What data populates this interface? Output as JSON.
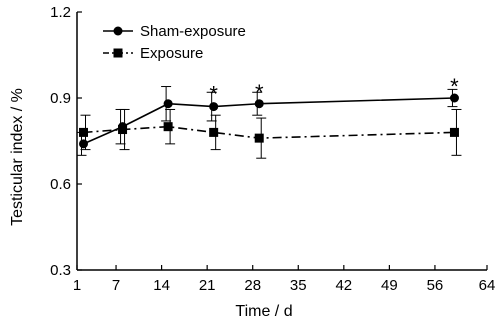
{
  "chart_data": {
    "type": "line",
    "title": "",
    "xlabel": "Time / d",
    "ylabel": "Testicular index / %",
    "xlim": [
      1,
      64
    ],
    "ylim": [
      0.3,
      1.2
    ],
    "xticks": [
      1,
      7,
      14,
      21,
      28,
      35,
      42,
      49,
      56,
      64
    ],
    "yticks": [
      0.3,
      0.6,
      0.9,
      1.2
    ],
    "xtick_labels": [
      "1",
      "7",
      "14",
      "21",
      "28",
      "35",
      "42",
      "49",
      "56",
      "64"
    ],
    "ytick_labels": [
      "0.3",
      "0.6",
      "0.9",
      "1.2"
    ],
    "grid": false,
    "legend_position": "top-left",
    "series": [
      {
        "name": "Sham-exposure",
        "marker": "circle",
        "line_style": "solid",
        "x": [
          2,
          8,
          15,
          22,
          29,
          59
        ],
        "y": [
          0.74,
          0.8,
          0.88,
          0.87,
          0.88,
          0.9
        ],
        "error": [
          0.04,
          0.06,
          0.06,
          0.05,
          0.04,
          0.03
        ]
      },
      {
        "name": "Exposure",
        "marker": "square",
        "line_style": "dash-dot",
        "x": [
          2,
          8,
          15,
          22,
          29,
          59
        ],
        "y": [
          0.78,
          0.79,
          0.8,
          0.78,
          0.76,
          0.78
        ],
        "error": [
          0.06,
          0.07,
          0.06,
          0.06,
          0.07,
          0.08
        ]
      }
    ],
    "annotations": [
      {
        "text": "*",
        "x": 22,
        "y": 0.93
      },
      {
        "text": "*",
        "x": 29,
        "y": 0.935
      },
      {
        "text": "*",
        "x": 59,
        "y": 0.955
      }
    ]
  }
}
